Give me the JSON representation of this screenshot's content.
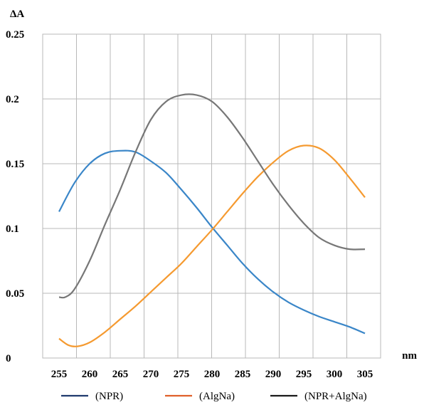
{
  "chart_data": {
    "type": "line",
    "title": "",
    "ylabel": "ΔA",
    "xlabel": "nm",
    "xlim": [
      255,
      305
    ],
    "ylim": [
      0,
      0.25
    ],
    "grid": true,
    "legend_position": "bottom",
    "x_ticks": [
      "255",
      "260",
      "265",
      "270",
      "275",
      "280",
      "285",
      "290",
      "295",
      "300",
      "305"
    ],
    "y_ticks": [
      "0",
      "0.05",
      "0.1",
      "0.15",
      "0.2",
      "0.25"
    ],
    "legend": [
      {
        "label": "(NPR)",
        "color": "#1f3a6e"
      },
      {
        "label": "(AlgNa)",
        "color": "#e0602a"
      },
      {
        "label": "(NPR+AlgNa)",
        "color": "#1a1a1a"
      }
    ],
    "series": [
      {
        "color": "#3a86c8",
        "x": [
          255,
          257.5,
          260,
          262.5,
          265,
          267.5,
          270,
          272.5,
          275,
          277.5,
          280,
          282.5,
          285,
          287.5,
          290,
          292.5,
          295,
          297.5,
          300,
          302.5,
          305
        ],
        "y": [
          0.113,
          0.135,
          0.15,
          0.158,
          0.16,
          0.159,
          0.152,
          0.143,
          0.13,
          0.116,
          0.101,
          0.087,
          0.073,
          0.061,
          0.051,
          0.043,
          0.037,
          0.032,
          0.028,
          0.024,
          0.019
        ]
      },
      {
        "color": "#f59a30",
        "x": [
          255,
          256.5,
          258,
          260,
          262.5,
          265,
          267.5,
          270,
          272.5,
          275,
          277.5,
          280,
          282.5,
          285,
          287.5,
          290,
          292.5,
          295,
          297.5,
          300,
          302.5,
          305
        ],
        "y": [
          0.015,
          0.01,
          0.009,
          0.012,
          0.02,
          0.03,
          0.04,
          0.051,
          0.062,
          0.073,
          0.086,
          0.099,
          0.113,
          0.127,
          0.14,
          0.151,
          0.16,
          0.164,
          0.162,
          0.153,
          0.139,
          0.124
        ]
      },
      {
        "color": "#777777",
        "x": [
          255,
          256,
          257.5,
          260,
          262.5,
          265,
          267.5,
          270,
          272.5,
          275,
          277.5,
          280,
          282.5,
          285,
          287.5,
          290,
          292.5,
          295,
          297.5,
          300,
          302.5,
          305
        ],
        "y": [
          0.047,
          0.047,
          0.053,
          0.075,
          0.103,
          0.13,
          0.159,
          0.184,
          0.198,
          0.203,
          0.203,
          0.198,
          0.186,
          0.17,
          0.152,
          0.134,
          0.118,
          0.104,
          0.093,
          0.087,
          0.084,
          0.084
        ]
      }
    ]
  }
}
